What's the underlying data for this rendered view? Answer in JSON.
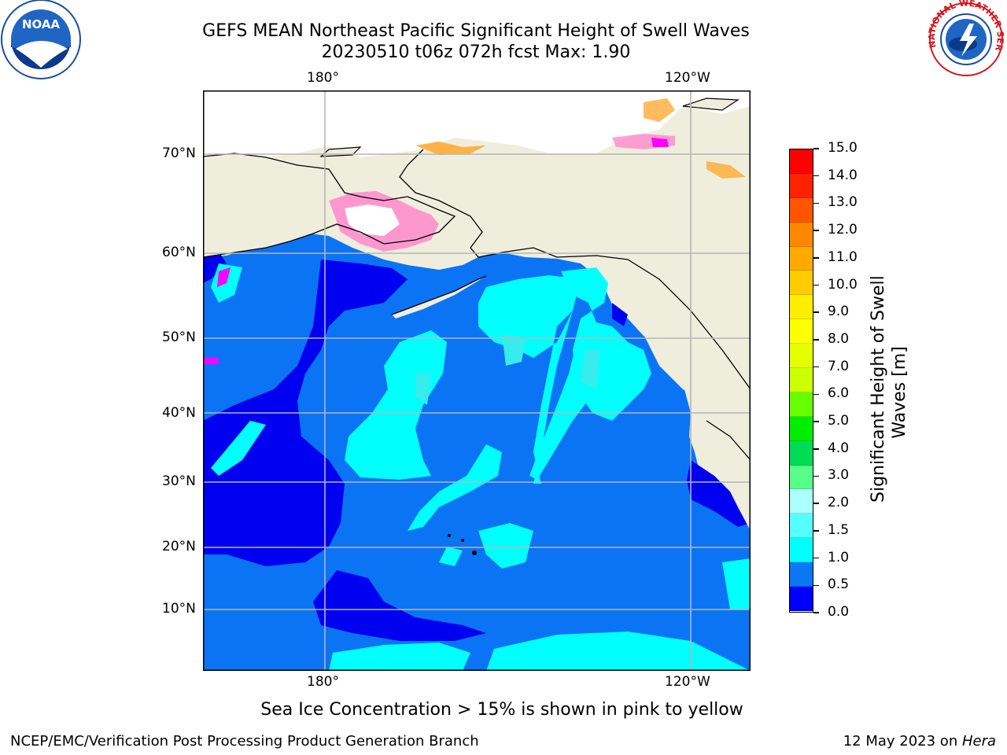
{
  "header": {
    "title_line1": "GEFS MEAN Northeast Pacific Significant Height of Swell Waves",
    "title_line2": "20230510 t06z 072h fcst   Max: 1.90"
  },
  "map": {
    "lon_labels": [
      "180°",
      "120°W"
    ],
    "lat_labels": [
      "70°N",
      "60°N",
      "50°N",
      "40°N",
      "30°N",
      "20°N",
      "10°N"
    ],
    "land_color": "#efeedd",
    "ocean_colors": {
      "band_0_05": "#0000f0",
      "band_05_10": "#0b74f5",
      "band_10_15": "#00ffff",
      "band_15_20": "#36ecec"
    },
    "ice_colors": [
      "#ff00ff",
      "#ff88cc",
      "#ffaa33",
      "#ffe000"
    ]
  },
  "colorbar": {
    "label_line1": "Significant Height of Swell",
    "label_line2": "Waves [m]",
    "ticks": [
      "15.0",
      "14.0",
      "13.0",
      "12.0",
      "11.0",
      "10.0",
      "9.0",
      "8.0",
      "7.0",
      "6.0",
      "5.0",
      "4.0",
      "3.0",
      "2.0",
      "1.5",
      "1.0",
      "0.5",
      "0.0"
    ],
    "colors": [
      "#ff0000",
      "#ff2200",
      "#ff5500",
      "#ff8800",
      "#ffaa00",
      "#ffcc00",
      "#ffee00",
      "#ffff00",
      "#e6ff00",
      "#ccff00",
      "#66ff00",
      "#00ee00",
      "#00dd55",
      "#55ff88",
      "#aaffff",
      "#55ffff",
      "#00ffff",
      "#0a78f5",
      "#0000ff"
    ]
  },
  "note": "Sea Ice Concentration > 15% is shown in pink to yellow",
  "footer": {
    "left": "NCEP/EMC/Verification Post Processing Product Generation Branch",
    "right_prefix": "12 May 2023 on ",
    "right_italic": "Hera"
  },
  "logos": {
    "noaa_text": "NOAA",
    "nws_text": "NATIONAL WEATHER SERVICE"
  }
}
